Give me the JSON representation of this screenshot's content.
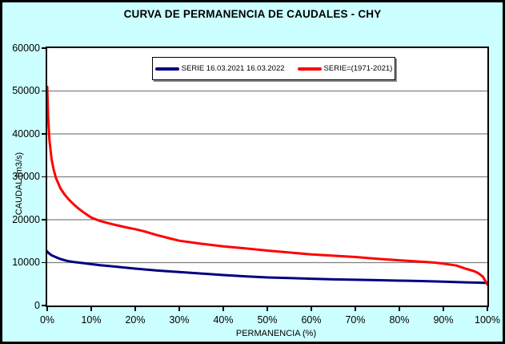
{
  "title": "CURVA DE PERMANENCIA DE CAUDALES - CHY",
  "colors": {
    "background": "#CCFFFF",
    "plot_background": "#FFFFFF",
    "grid": "#808080",
    "axis": "#000000",
    "series_1": "#000080",
    "series_2": "#FF0000",
    "legend_shadow": "#8A8A8A"
  },
  "chart_data": {
    "type": "line",
    "title": "CURVA DE PERMANENCIA DE CAUDALES - CHY",
    "xlabel": "PERMANENCIA (%)",
    "ylabel": "CAUDAL (m3/s)",
    "xlim": [
      0,
      100
    ],
    "ylim": [
      0,
      60000
    ],
    "grid": "horizontal",
    "legend_position": "top-center-inside",
    "y_ticks": [
      0,
      10000,
      20000,
      30000,
      40000,
      50000,
      60000
    ],
    "x_ticks": [
      [
        0,
        "0%"
      ],
      [
        10,
        "10%"
      ],
      [
        20,
        "20%"
      ],
      [
        30,
        "30%"
      ],
      [
        40,
        "40%"
      ],
      [
        50,
        "50%"
      ],
      [
        60,
        "60%"
      ],
      [
        70,
        "70%"
      ],
      [
        80,
        "80%"
      ],
      [
        90,
        "90%"
      ],
      [
        100,
        "100%"
      ]
    ],
    "series": [
      {
        "name": "SERIE 16.03.2021 16.03.2022",
        "color": "#000080",
        "x": [
          0,
          0.3,
          1,
          2,
          3,
          4,
          5,
          6,
          8,
          10,
          12,
          15,
          20,
          25,
          30,
          35,
          40,
          45,
          50,
          55,
          60,
          65,
          70,
          75,
          80,
          85,
          90,
          95,
          98,
          100
        ],
        "y": [
          12600,
          12250,
          11700,
          11250,
          10850,
          10550,
          10300,
          10150,
          9900,
          9650,
          9400,
          9100,
          8600,
          8150,
          7800,
          7450,
          7100,
          6800,
          6550,
          6400,
          6250,
          6100,
          6000,
          5900,
          5800,
          5700,
          5550,
          5400,
          5330,
          5250
        ]
      },
      {
        "name": "SERIE=(1971-2021)",
        "color": "#FF0000",
        "x": [
          0,
          0.2,
          0.5,
          1,
          1.5,
          2,
          3,
          4,
          5,
          6,
          7,
          8,
          9,
          10,
          12,
          15,
          18,
          20,
          22,
          25,
          28,
          30,
          35,
          40,
          45,
          50,
          55,
          60,
          65,
          70,
          75,
          80,
          85,
          88,
          90,
          93,
          95,
          97,
          98,
          99,
          100
        ],
        "y": [
          51000,
          44000,
          38500,
          34000,
          31500,
          29700,
          27300,
          25800,
          24600,
          23600,
          22700,
          21900,
          21200,
          20500,
          19700,
          18900,
          18200,
          17800,
          17300,
          16400,
          15600,
          15100,
          14400,
          13800,
          13300,
          12800,
          12350,
          11900,
          11600,
          11300,
          10900,
          10550,
          10200,
          10000,
          9750,
          9300,
          8600,
          8000,
          7500,
          6700,
          4900
        ]
      }
    ]
  }
}
